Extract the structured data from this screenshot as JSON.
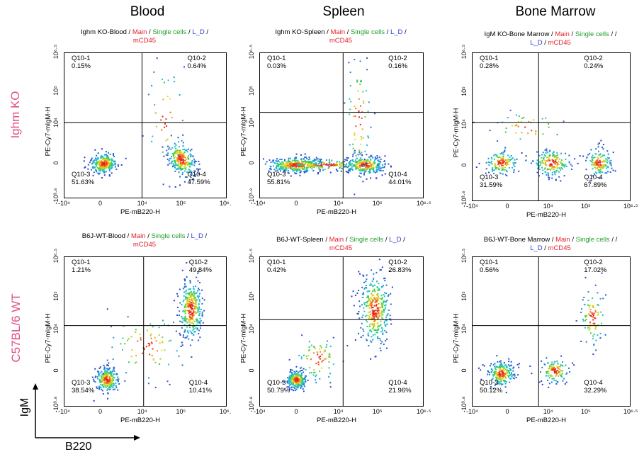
{
  "figure": {
    "columns": [
      "Blood",
      "Spleen",
      "Bone Marrow"
    ],
    "rows": [
      "Ighm KO",
      "C57BL/6 WT"
    ],
    "corner_axis_y": "IgM",
    "corner_axis_x": "B220"
  },
  "colors": {
    "row_label": "#e0508a",
    "gate_main": "#e4202a",
    "gate_single": "#1f9e2a",
    "gate_ld": "#2b39d4",
    "gate_cd45": "#e4202a"
  },
  "chart_data": [
    {
      "type": "scatter",
      "panel": "Ighm KO-Blood",
      "title_prefix": "Ighm KO-Blood",
      "gates": [
        "Main",
        "Single cells",
        "L_D",
        "mCD45"
      ],
      "xlabel": "PE-mB220-H",
      "ylabel": "PE-Cy7-mIgM-H",
      "xticks": [
        "-10⁴",
        "0",
        "10⁴",
        "10⁵",
        "10⁶."
      ],
      "yticks": [
        "10⁶·⁵",
        "10⁵",
        "10⁴",
        "0",
        "-10³·⁸"
      ],
      "quadrants": [
        {
          "name": "Q10-1",
          "pct": "0.15%"
        },
        {
          "name": "Q10-2",
          "pct": "0.64%"
        },
        {
          "name": "Q10-3",
          "pct": "51.63%"
        },
        {
          "name": "Q10-4",
          "pct": "47.59%"
        }
      ]
    },
    {
      "type": "scatter",
      "panel": "Ighm KO-Spleen",
      "title_prefix": "Ighm KO-Spleen",
      "gates": [
        "Main",
        "Single cells",
        "L_D",
        "mCD45"
      ],
      "xlabel": "PE-mB220-H",
      "ylabel": "PE-Cy7-mIgM-H",
      "xticks": [
        "-10⁴",
        "0",
        "10⁴",
        "10⁵",
        "10⁶·⁵"
      ],
      "yticks": [
        "10⁶·⁵",
        "10⁵",
        "10⁴",
        "0",
        "-10³·⁸"
      ],
      "quadrants": [
        {
          "name": "Q10-1",
          "pct": "0.03%"
        },
        {
          "name": "Q10-2",
          "pct": "0.16%"
        },
        {
          "name": "Q10-3",
          "pct": "55.81%"
        },
        {
          "name": "Q10-4",
          "pct": "44.01%"
        }
      ]
    },
    {
      "type": "scatter",
      "panel": "IgM KO-Bone Marrow",
      "title_prefix": "IgM KO-Bone Marrow",
      "gates": [
        "Main",
        "Single cells",
        "L_D",
        "mCD45"
      ],
      "xlabel": "PE-mB220-H",
      "ylabel": "PE-Cy7-mIgM-H",
      "xticks": [
        "-10⁴",
        "0",
        "10⁴",
        "10⁵",
        "10⁶·⁵"
      ],
      "yticks": [
        "10⁶·⁵",
        "10⁵",
        "10⁴",
        "0",
        "-10³·⁸"
      ],
      "quadrants": [
        {
          "name": "Q10-1",
          "pct": "0.28%"
        },
        {
          "name": "Q10-2",
          "pct": "0.24%"
        },
        {
          "name": "Q10-3",
          "pct": "31.59%"
        },
        {
          "name": "Q10-4",
          "pct": "67.89%"
        }
      ]
    },
    {
      "type": "scatter",
      "panel": "B6J-WT-Blood",
      "title_prefix": "B6J-WT-Blood",
      "gates": [
        "Main",
        "Single cells",
        "L_D",
        "mCD45"
      ],
      "xlabel": "PE-mB220-H",
      "ylabel": "PE-Cy7-mIgM-H",
      "xticks": [
        "-10⁴",
        "0",
        "10⁴",
        "10⁵",
        "10⁶."
      ],
      "yticks": [
        "10⁶·⁵",
        "10⁵",
        "10⁴",
        "0",
        "-10³·⁸"
      ],
      "quadrants": [
        {
          "name": "Q10-1",
          "pct": "1.21%"
        },
        {
          "name": "Q10-2",
          "pct": "49.84%"
        },
        {
          "name": "Q10-3",
          "pct": "38.54%"
        },
        {
          "name": "Q10-4",
          "pct": "10.41%"
        }
      ]
    },
    {
      "type": "scatter",
      "panel": "B6J-WT-Spleen",
      "title_prefix": "B6J-WT-Spleen",
      "gates": [
        "Main",
        "Single cells",
        "L_D",
        "mCD45"
      ],
      "xlabel": "PE-mB220-H",
      "ylabel": "PE-Cy7-mIgM-H",
      "xticks": [
        "-10⁴",
        "0",
        "10⁴",
        "10⁵",
        "10⁶·⁵"
      ],
      "yticks": [
        "10⁶·⁵",
        "10⁵",
        "10⁴",
        "0",
        "-10³·⁸"
      ],
      "quadrants": [
        {
          "name": "Q10-1",
          "pct": "0.42%"
        },
        {
          "name": "Q10-2",
          "pct": "26.83%"
        },
        {
          "name": "Q10-3",
          "pct": "50.79%"
        },
        {
          "name": "Q10-4",
          "pct": "21.96%"
        }
      ]
    },
    {
      "type": "scatter",
      "panel": "B6J-WT-Bone Marrow",
      "title_prefix": "B6J-WT-Bone Marrow",
      "gates": [
        "Main",
        "Single cells",
        "L_D",
        "mCD45"
      ],
      "xlabel": "PE-mB220-H",
      "ylabel": "PE-Cy7-mIgM-H",
      "xticks": [
        "-10⁴",
        "0",
        "10⁴",
        "10⁵",
        "10⁶·⁵"
      ],
      "yticks": [
        "10⁶·⁵",
        "10⁵",
        "10⁴",
        "0",
        "-10³·⁸"
      ],
      "quadrants": [
        {
          "name": "Q10-1",
          "pct": "0.56%"
        },
        {
          "name": "Q10-2",
          "pct": "17.02%"
        },
        {
          "name": "Q10-3",
          "pct": "50.12%"
        },
        {
          "name": "Q10-4",
          "pct": "32.29%"
        }
      ]
    }
  ]
}
